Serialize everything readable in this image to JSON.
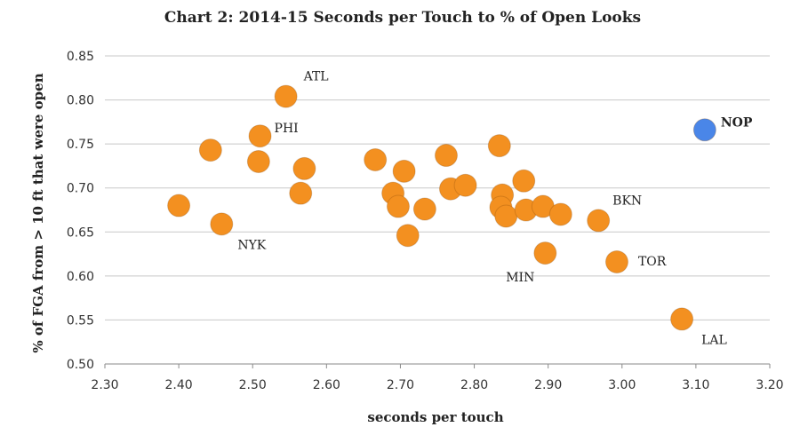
{
  "chart_data": {
    "type": "scatter",
    "title": "Chart 2: 2014-15 Seconds per Touch to % of Open Looks",
    "xlabel": "seconds per touch",
    "ylabel": "% of FGA from > 10 ft that were open",
    "xlim": [
      2.3,
      3.2
    ],
    "ylim": [
      0.5,
      0.85
    ],
    "xticks": [
      "2.30",
      "2.40",
      "2.50",
      "2.60",
      "2.70",
      "2.80",
      "2.90",
      "3.00",
      "3.10",
      "3.20"
    ],
    "yticks": [
      "0.50",
      "0.55",
      "0.60",
      "0.65",
      "0.70",
      "0.75",
      "0.80",
      "0.85"
    ],
    "grid": "horizontal",
    "colors": {
      "default": "#f39020",
      "highlight": "#4a86e8"
    },
    "points": [
      {
        "x": 2.545,
        "y": 0.804,
        "label": "ATL"
      },
      {
        "x": 2.51,
        "y": 0.759,
        "label": "PHI"
      },
      {
        "x": 2.443,
        "y": 0.743,
        "label": ""
      },
      {
        "x": 2.508,
        "y": 0.73,
        "label": ""
      },
      {
        "x": 2.57,
        "y": 0.722,
        "label": ""
      },
      {
        "x": 2.565,
        "y": 0.694,
        "label": ""
      },
      {
        "x": 2.4,
        "y": 0.68,
        "label": ""
      },
      {
        "x": 2.458,
        "y": 0.659,
        "label": "NYK"
      },
      {
        "x": 2.666,
        "y": 0.732,
        "label": ""
      },
      {
        "x": 2.705,
        "y": 0.719,
        "label": ""
      },
      {
        "x": 2.69,
        "y": 0.694,
        "label": ""
      },
      {
        "x": 2.697,
        "y": 0.679,
        "label": ""
      },
      {
        "x": 2.733,
        "y": 0.676,
        "label": ""
      },
      {
        "x": 2.71,
        "y": 0.646,
        "label": ""
      },
      {
        "x": 2.762,
        "y": 0.737,
        "label": ""
      },
      {
        "x": 2.768,
        "y": 0.699,
        "label": ""
      },
      {
        "x": 2.788,
        "y": 0.703,
        "label": ""
      },
      {
        "x": 2.834,
        "y": 0.748,
        "label": ""
      },
      {
        "x": 2.838,
        "y": 0.692,
        "label": ""
      },
      {
        "x": 2.836,
        "y": 0.678,
        "label": ""
      },
      {
        "x": 2.843,
        "y": 0.668,
        "label": ""
      },
      {
        "x": 2.867,
        "y": 0.708,
        "label": ""
      },
      {
        "x": 2.87,
        "y": 0.675,
        "label": ""
      },
      {
        "x": 2.893,
        "y": 0.679,
        "label": ""
      },
      {
        "x": 2.917,
        "y": 0.67,
        "label": ""
      },
      {
        "x": 2.968,
        "y": 0.663,
        "label": "BKN"
      },
      {
        "x": 2.896,
        "y": 0.626,
        "label": "MIN"
      },
      {
        "x": 2.993,
        "y": 0.616,
        "label": "TOR"
      },
      {
        "x": 3.081,
        "y": 0.551,
        "label": "LAL"
      },
      {
        "x": 3.112,
        "y": 0.766,
        "label": "NOP",
        "highlight": true
      }
    ]
  }
}
